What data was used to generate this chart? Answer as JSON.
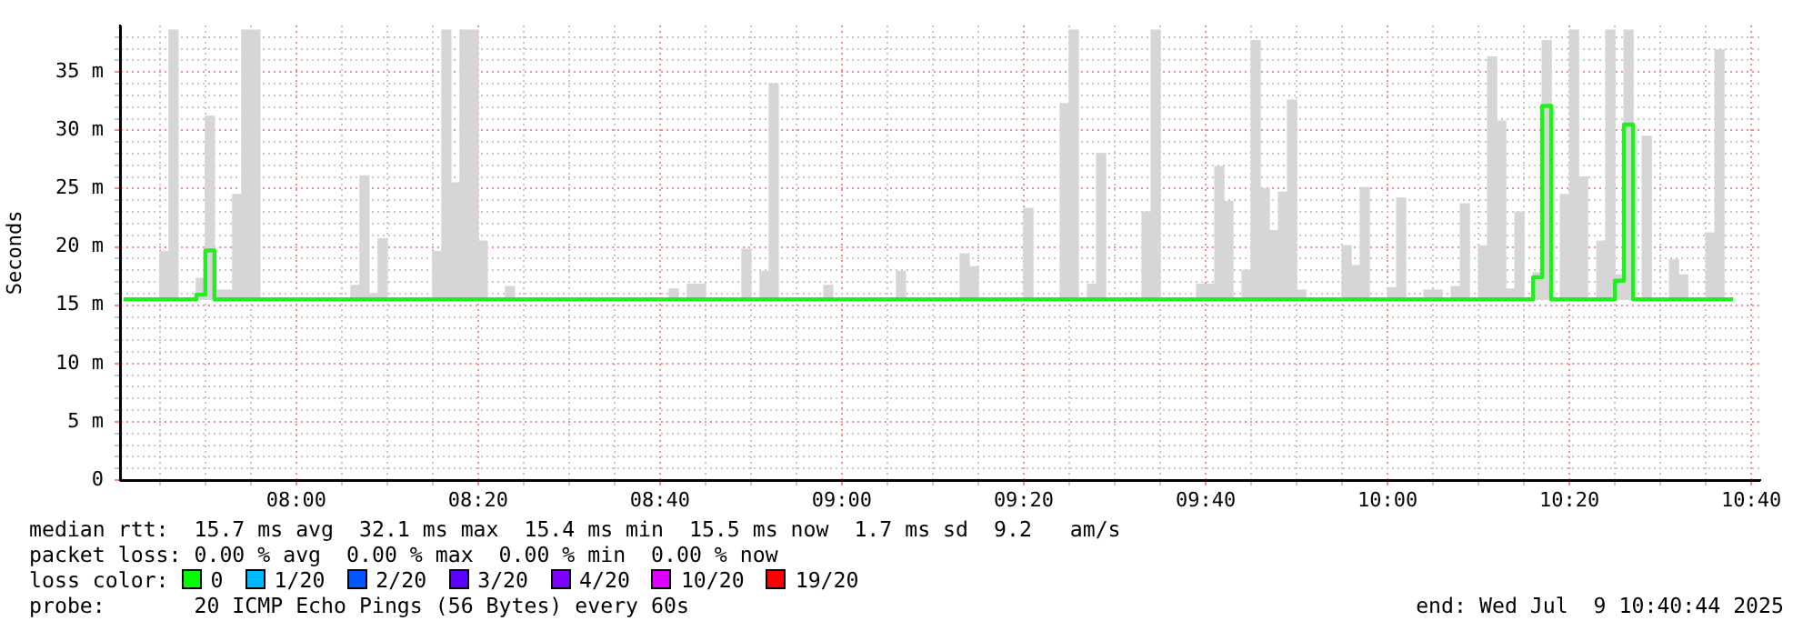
{
  "chart_data": {
    "type": "step",
    "ylabel": "Seconds",
    "xlim": [
      7.677,
      10.683
    ],
    "xticks": [
      {
        "value": 7.75,
        "label": null
      },
      {
        "value": 7.8333,
        "label": null
      },
      {
        "value": 7.9167,
        "label": null
      },
      {
        "value": 8,
        "label": "08:00"
      },
      {
        "value": 8.0833,
        "label": null
      },
      {
        "value": 8.1667,
        "label": null
      },
      {
        "value": 8.25,
        "label": null
      },
      {
        "value": 8.3333,
        "label": "08:20"
      },
      {
        "value": 8.4167,
        "label": null
      },
      {
        "value": 8.5,
        "label": null
      },
      {
        "value": 8.5833,
        "label": null
      },
      {
        "value": 8.6667,
        "label": "08:40"
      },
      {
        "value": 8.75,
        "label": null
      },
      {
        "value": 8.8333,
        "label": null
      },
      {
        "value": 8.9167,
        "label": null
      },
      {
        "value": 9,
        "label": "09:00"
      },
      {
        "value": 9.0833,
        "label": null
      },
      {
        "value": 9.1667,
        "label": null
      },
      {
        "value": 9.25,
        "label": null
      },
      {
        "value": 9.3333,
        "label": "09:20"
      },
      {
        "value": 9.4167,
        "label": null
      },
      {
        "value": 9.5,
        "label": null
      },
      {
        "value": 9.5833,
        "label": null
      },
      {
        "value": 9.6667,
        "label": "09:40"
      },
      {
        "value": 9.75,
        "label": null
      },
      {
        "value": 9.8333,
        "label": null
      },
      {
        "value": 9.9167,
        "label": null
      },
      {
        "value": 10,
        "label": "10:00"
      },
      {
        "value": 10.0833,
        "label": null
      },
      {
        "value": 10.1667,
        "label": null
      },
      {
        "value": 10.25,
        "label": null
      },
      {
        "value": 10.3333,
        "label": "10:20"
      },
      {
        "value": 10.4167,
        "label": null
      },
      {
        "value": 10.5,
        "label": null
      },
      {
        "value": 10.5833,
        "label": null
      },
      {
        "value": 10.6667,
        "label": "10:40"
      }
    ],
    "ylim": [
      0,
      39
    ],
    "yticks": [
      0,
      {
        "value": 1,
        "label": null
      },
      {
        "value": 2,
        "label": null
      },
      {
        "value": 3,
        "label": null
      },
      {
        "value": 4,
        "label": null
      },
      {
        "value": 5,
        "label": "5 m"
      },
      {
        "value": 6,
        "label": null
      },
      {
        "value": 7,
        "label": null
      },
      {
        "value": 8,
        "label": null
      },
      {
        "value": 9,
        "label": null
      },
      {
        "value": 10,
        "label": "10 m"
      },
      {
        "value": 11,
        "label": null
      },
      {
        "value": 12,
        "label": null
      },
      {
        "value": 13,
        "label": null
      },
      {
        "value": 14,
        "label": null
      },
      {
        "value": 15,
        "label": "15 m"
      },
      {
        "value": 16,
        "label": null
      },
      {
        "value": 17,
        "label": null
      },
      {
        "value": 18,
        "label": null
      },
      {
        "value": 19,
        "label": null
      },
      {
        "value": 20,
        "label": "20 m"
      },
      {
        "value": 21,
        "label": null
      },
      {
        "value": 22,
        "label": null
      },
      {
        "value": 23,
        "label": null
      },
      {
        "value": 24,
        "label": null
      },
      {
        "value": 25,
        "label": "25 m"
      },
      {
        "value": 26,
        "label": null
      },
      {
        "value": 27,
        "label": null
      },
      {
        "value": 28,
        "label": null
      },
      {
        "value": 29,
        "label": null
      },
      {
        "value": 30,
        "label": "30 m"
      },
      {
        "value": 31,
        "label": null
      },
      {
        "value": 32,
        "label": null
      },
      {
        "value": 33,
        "label": null
      },
      {
        "value": 34,
        "label": null
      },
      {
        "value": 35,
        "label": "35 m"
      },
      {
        "value": 36,
        "label": null
      },
      {
        "value": 37,
        "label": null
      },
      {
        "value": 38,
        "label": null
      }
    ],
    "grid": true,
    "legend": false,
    "series": [
      {
        "color": "#22ee22",
        "x": [
          7.6833,
          7.75,
          7.7667,
          7.7833,
          7.8167,
          7.8333,
          7.85,
          7.8833,
          7.9,
          7.9333,
          8.1,
          8.1167,
          8.1333,
          8.15,
          8.1667,
          8.25,
          8.2667,
          8.2833,
          8.3,
          8.3333,
          8.35,
          8.3833,
          8.4,
          8.6833,
          8.7,
          8.7167,
          8.75,
          8.8167,
          8.8333,
          8.85,
          8.8667,
          8.8833,
          8.9667,
          8.9833,
          9.1,
          9.1167,
          9.2167,
          9.2333,
          9.25,
          9.3333,
          9.35,
          9.4,
          9.4167,
          9.4333,
          9.45,
          9.4667,
          9.4833,
          9.55,
          9.5667,
          9.5833,
          9.65,
          9.6833,
          9.7,
          9.7167,
          9.7333,
          9.75,
          9.7667,
          9.7833,
          9.8,
          9.8167,
          9.8333,
          9.85,
          9.9167,
          9.9333,
          9.95,
          9.9667,
          10,
          10.0167,
          10.0333,
          10.0667,
          10.1,
          10.1167,
          10.1333,
          10.15,
          10.1667,
          10.1833,
          10.2,
          10.2167,
          10.2333,
          10.25,
          10.2667,
          10.2833,
          10.3,
          10.3167,
          10.3333,
          10.35,
          10.3667,
          10.3833,
          10.4,
          10.4167,
          10.4333,
          10.45,
          10.4667,
          10.4833,
          10.5167,
          10.5333,
          10.55,
          10.5833,
          10.6,
          10.6167,
          10.6333
        ],
        "values": [
          15.5,
          15.5,
          15.5,
          15.5,
          15.9,
          19.7,
          15.5,
          15.5,
          15.5,
          15.5,
          15.5,
          15.5,
          15.5,
          15.5,
          15.5,
          15.5,
          15.5,
          15.5,
          15.5,
          15.5,
          15.5,
          15.5,
          15.5,
          15.5,
          15.5,
          15.5,
          15.5,
          15.5,
          15.5,
          15.5,
          15.5,
          15.5,
          15.5,
          15.5,
          15.5,
          15.5,
          15.5,
          15.5,
          15.5,
          15.5,
          15.5,
          15.5,
          15.5,
          15.5,
          15.5,
          15.5,
          15.5,
          15.5,
          15.5,
          15.5,
          15.5,
          15.5,
          15.5,
          15.5,
          15.5,
          15.5,
          15.5,
          15.5,
          15.5,
          15.5,
          15.5,
          15.5,
          15.5,
          15.5,
          15.5,
          15.5,
          15.5,
          15.5,
          15.5,
          15.5,
          15.5,
          15.5,
          15.5,
          15.5,
          15.5,
          15.5,
          15.5,
          15.5,
          15.5,
          15.5,
          17.4,
          32.1,
          15.5,
          15.5,
          15.5,
          15.5,
          15.5,
          15.5,
          15.5,
          17.1,
          30.5,
          15.5,
          15.5,
          15.5,
          15.5,
          15.5,
          15.5,
          15.5,
          15.5,
          15.5,
          15.5
        ]
      },
      {
        "type": "bar",
        "color": "#d6d6d6",
        "x": [
          7.7583,
          7.775,
          7.825,
          7.8417,
          7.8583,
          7.875,
          7.8917,
          7.9083,
          7.925,
          8.1083,
          8.125,
          8.1417,
          8.1583,
          8.2583,
          8.275,
          8.2917,
          8.3083,
          8.325,
          8.3417,
          8.3917,
          8.6917,
          8.725,
          8.7417,
          8.825,
          8.8583,
          8.875,
          8.975,
          9.1083,
          9.225,
          9.2417,
          9.3417,
          9.4083,
          9.425,
          9.4583,
          9.475,
          9.5583,
          9.575,
          9.6583,
          9.675,
          9.6917,
          9.7083,
          9.7417,
          9.7583,
          9.775,
          9.7917,
          9.8083,
          9.825,
          9.8417,
          9.925,
          9.9417,
          9.9583,
          10.0083,
          10.025,
          10.075,
          10.0917,
          10.125,
          10.1417,
          10.175,
          10.1917,
          10.2083,
          10.225,
          10.2417,
          10.275,
          10.2917,
          10.325,
          10.3417,
          10.3583,
          10.3917,
          10.4083,
          10.425,
          10.4417,
          10.475,
          10.525,
          10.5417,
          10.5917,
          10.6083
        ],
        "base": [
          15.5,
          15.5,
          15.5,
          15.5,
          15.5,
          15.5,
          15.5,
          15.5,
          15.5,
          15.5,
          15.5,
          15.5,
          15.5,
          15.5,
          15.5,
          15.5,
          15.5,
          15.5,
          15.5,
          15.5,
          15.5,
          15.5,
          15.5,
          15.5,
          15.5,
          15.5,
          15.5,
          15.5,
          15.5,
          15.5,
          15.5,
          15.5,
          15.5,
          15.5,
          15.5,
          15.5,
          15.5,
          15.5,
          15.5,
          15.5,
          15.5,
          15.5,
          15.5,
          15.5,
          15.5,
          15.5,
          15.5,
          15.5,
          15.5,
          15.5,
          15.5,
          15.5,
          15.5,
          15.5,
          15.5,
          15.5,
          15.5,
          15.5,
          15.5,
          15.5,
          15.5,
          15.5,
          15.5,
          15.5,
          15.5,
          15.5,
          15.5,
          15.5,
          15.5,
          15.5,
          15.5,
          15.5,
          15.5,
          15.5,
          15.5,
          15.5
        ],
        "values": [
          4.1,
          23.1,
          1.8,
          15.7,
          0.8,
          0.8,
          9,
          23.1,
          23.1,
          1.2,
          10.6,
          0.5,
          5.2,
          4.1,
          23.1,
          10,
          23.1,
          23.1,
          5,
          1.1,
          0.9,
          1.3,
          1.3,
          4.3,
          2.4,
          18.5,
          1.2,
          2.4,
          3.9,
          2.8,
          7.8,
          16.8,
          23.1,
          1.3,
          12.5,
          7.5,
          23.1,
          1.3,
          1.3,
          11.4,
          8.4,
          2.5,
          22.2,
          9.5,
          5.9,
          9.2,
          17.1,
          0.8,
          4.6,
          2.9,
          9.6,
          1,
          8.7,
          0.8,
          0.8,
          1.1,
          8.2,
          4.6,
          20.8,
          15.3,
          0.9,
          7.5,
          2.3,
          22.2,
          9,
          23.1,
          10.5,
          5,
          23.1,
          2.1,
          23.1,
          14,
          3.4,
          2.1,
          5.7,
          21.4
        ]
      }
    ],
    "annotations": [
      "median rtt:  15.7 ms avg  32.1 ms max  15.4 ms min  15.5 ms now  1.7 ms sd  9.2   am/s",
      "packet loss: 0.00 % avg  0.00 % max  0.00 % min  0.00 % now",
      "loss color:",
      "0",
      "1/20",
      "2/20",
      "3/20",
      "4/20",
      "10/20",
      "19/20",
      "probe:       20 ICMP Echo Pings (56 Bytes) every 60s",
      "end: Wed Jul  9 10:40:44 2025"
    ]
  }
}
